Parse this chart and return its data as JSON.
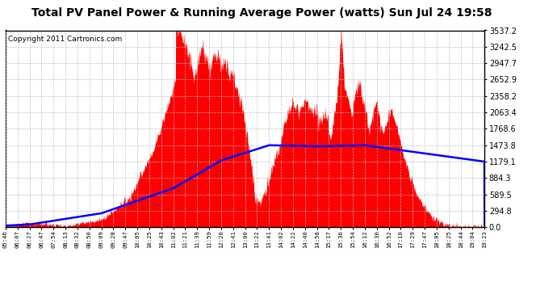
{
  "title": "Total PV Panel Power & Running Average Power (watts) Sun Jul 24 19:58",
  "copyright": "Copyright 2011 Cartronics.com",
  "yticks": [
    0.0,
    294.8,
    589.5,
    884.3,
    1179.1,
    1473.8,
    1768.6,
    2063.4,
    2358.2,
    2652.9,
    2947.7,
    3242.5,
    3537.2
  ],
  "xtick_labels": [
    "05:46",
    "06:07",
    "06:27",
    "06:47",
    "07:54",
    "08:13",
    "08:32",
    "08:50",
    "09:09",
    "09:28",
    "09:47",
    "10:05",
    "10:25",
    "10:43",
    "11:02",
    "11:21",
    "11:39",
    "11:59",
    "12:20",
    "12:41",
    "13:00",
    "13:22",
    "13:41",
    "14:02",
    "14:22",
    "14:40",
    "14:58",
    "15:17",
    "15:36",
    "15:54",
    "16:12",
    "16:30",
    "16:52",
    "17:10",
    "17:29",
    "17:47",
    "18:05",
    "18:25",
    "18:44",
    "19:04",
    "19:23"
  ],
  "ymax": 3537.2,
  "ymin": 0.0,
  "fill_color": "#FF0000",
  "line_color": "#0000FF",
  "background_color": "#FFFFFF",
  "title_fontsize": 10,
  "copyright_fontsize": 6.5,
  "grid_color": "#BBBBBB"
}
